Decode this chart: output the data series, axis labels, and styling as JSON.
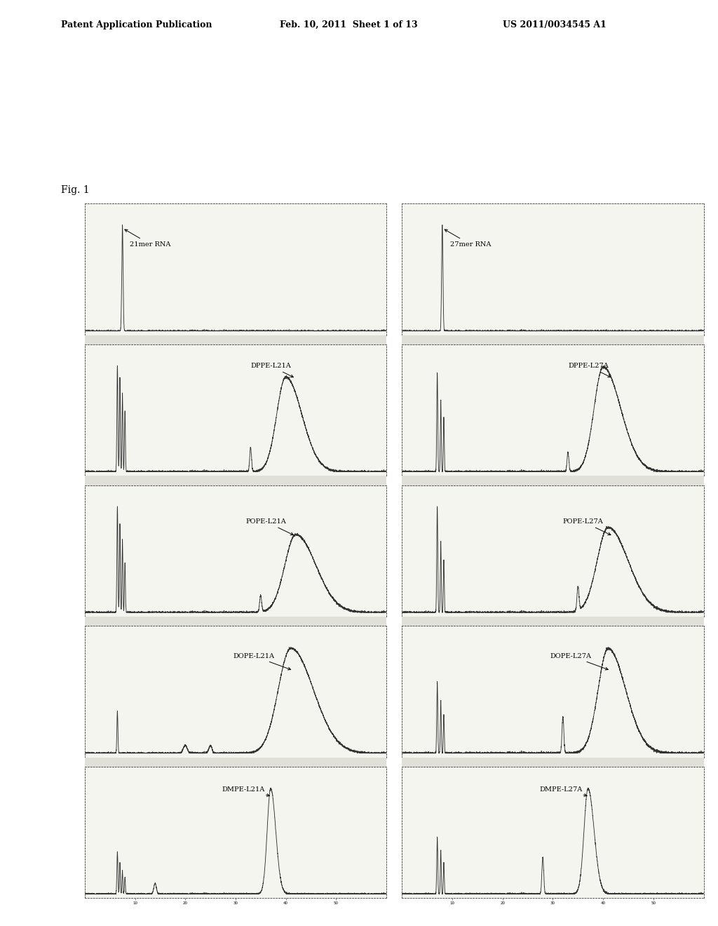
{
  "background_color": "#ffffff",
  "header_left": "Patent Application Publication",
  "header_mid": "Feb. 10, 2011  Sheet 1 of 13",
  "header_right": "US 2011/0034545 A1",
  "fig_label": "Fig. 1",
  "subplot_labels": [
    [
      "21mer RNA",
      "27mer RNA"
    ],
    [
      "DPPE-L21A",
      "DPPE-L27A"
    ],
    [
      "POPE-L21A",
      "POPE-L27A"
    ],
    [
      "DOPE-L21A",
      "DOPE-L27A"
    ],
    [
      "DMPE-L21A",
      "DMPE-L27A"
    ]
  ],
  "rows": 5,
  "cols": 2,
  "line_color": "#333333",
  "spine_color": "#555555",
  "bg_plot": "#f5f5f0",
  "label_fontsize": 7.0,
  "header_fontsize": 9.0,
  "fig_label_fontsize": 10.0
}
